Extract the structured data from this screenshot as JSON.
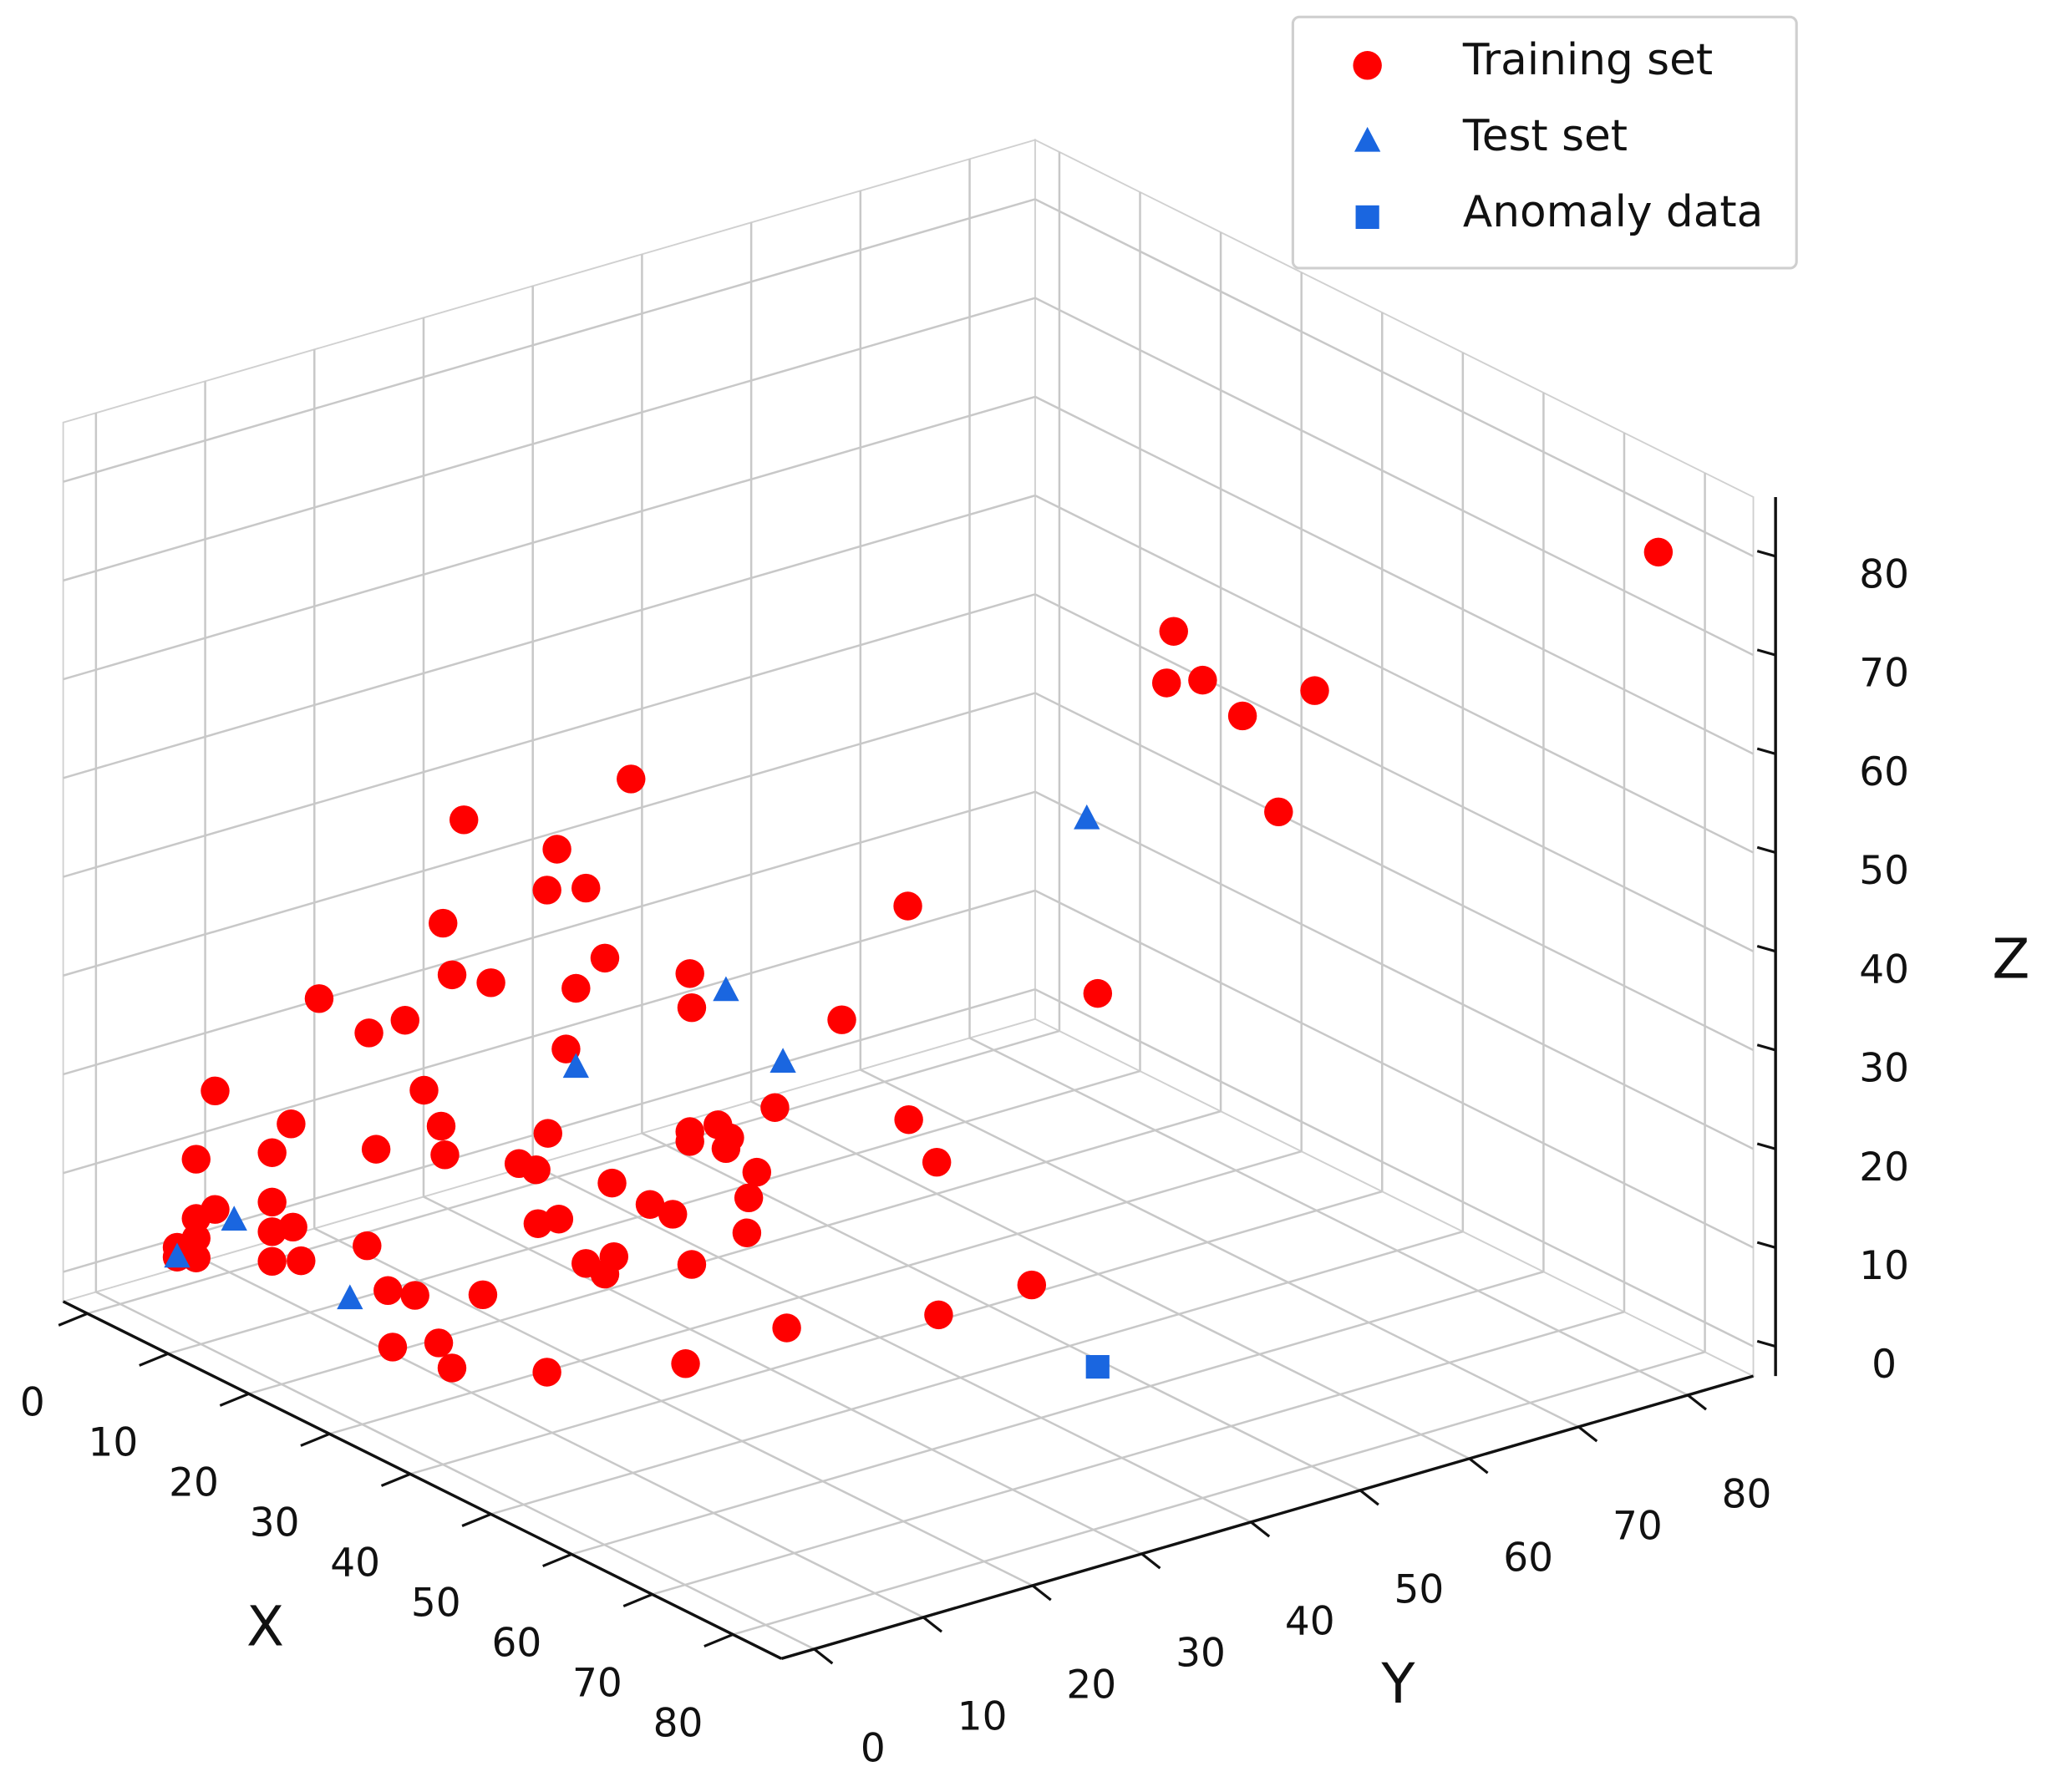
{
  "chart_data": {
    "type": "scatter3d",
    "xlabel": "X",
    "ylabel": "Y",
    "zlabel": "Z",
    "xlim": [
      -3,
      86
    ],
    "ylim": [
      -3,
      86
    ],
    "zlim": [
      -3,
      86
    ],
    "xticks": [
      0,
      10,
      20,
      30,
      40,
      50,
      60,
      70,
      80
    ],
    "yticks": [
      0,
      10,
      20,
      30,
      40,
      50,
      60,
      70,
      80
    ],
    "zticks": [
      0,
      10,
      20,
      30,
      40,
      50,
      60,
      70,
      80
    ],
    "grid": true,
    "legend": "upper right",
    "series": [
      {
        "name": "Training set",
        "color": "#ff0000",
        "marker": "o",
        "x": [
          81,
          48,
          62,
          57,
          56,
          66,
          61,
          20,
          25,
          23,
          15,
          32,
          17,
          34,
          33,
          30,
          10,
          27,
          24,
          3,
          37,
          38,
          44,
          20,
          15,
          16,
          5,
          16,
          27,
          49,
          9,
          10,
          30,
          8,
          6,
          24,
          30,
          24,
          39,
          30,
          25,
          4,
          21,
          15,
          41,
          43,
          19,
          40,
          8,
          5,
          21,
          36,
          22,
          30,
          4,
          8,
          16,
          33,
          4,
          13,
          26,
          32,
          33,
          17,
          8,
          37,
          3,
          4,
          3,
          21,
          23,
          26,
          48,
          27,
          30,
          42,
          50,
          43,
          33,
          38,
          3
        ],
        "y": [
          81,
          61,
          50,
          57,
          68,
          54,
          61,
          32,
          13,
          23,
          28,
          19,
          17,
          47,
          20,
          30,
          23,
          14,
          24,
          16,
          25,
          38,
          57,
          8,
          15,
          29,
          5,
          16,
          40,
          36,
          9,
          22,
          17,
          8,
          19,
          12,
          30,
          37,
          27,
          30,
          37,
          4,
          21,
          27,
          28,
          43,
          31,
          28,
          8,
          5,
          33,
          24,
          22,
          18,
          4,
          8,
          4,
          33,
          4,
          13,
          26,
          19,
          20,
          4,
          8,
          25,
          3,
          4,
          4,
          9,
          10,
          14,
          48,
          5,
          7,
          30,
          38,
          20,
          6,
          11,
          3
        ],
        "z": [
          80,
          65,
          69,
          65,
          60,
          66,
          52,
          48,
          52,
          45,
          36,
          46,
          37,
          36,
          39,
          33,
          27,
          36,
          31,
          24,
          34,
          29,
          28,
          30,
          27,
          20,
          19,
          20,
          15,
          24,
          16,
          12,
          21,
          13,
          9,
          18,
          16,
          13,
          21,
          17,
          11,
          12,
          13,
          8,
          18,
          15,
          7,
          15,
          8,
          7,
          5,
          13,
          7,
          12,
          6,
          5,
          10,
          7,
          4,
          4,
          4,
          8,
          7,
          7,
          2,
          8,
          3,
          2,
          2,
          4,
          4,
          4,
          3,
          2,
          3,
          2,
          4,
          2,
          2,
          2,
          2
        ]
      },
      {
        "name": "Test set",
        "color": "#1a66e0",
        "marker": "^",
        "x": [
          44,
          25,
          28,
          24,
          6,
          19,
          3
        ],
        "y": [
          56,
          37,
          40,
          24,
          6,
          7,
          3
        ],
        "z": [
          46,
          27,
          20,
          23,
          6,
          3,
          2
        ]
      },
      {
        "name": "Anomaly data",
        "color": "#1a66e0",
        "marker": "s",
        "x": [
          67
        ],
        "y": [
          40
        ],
        "z": [
          5
        ]
      }
    ]
  }
}
